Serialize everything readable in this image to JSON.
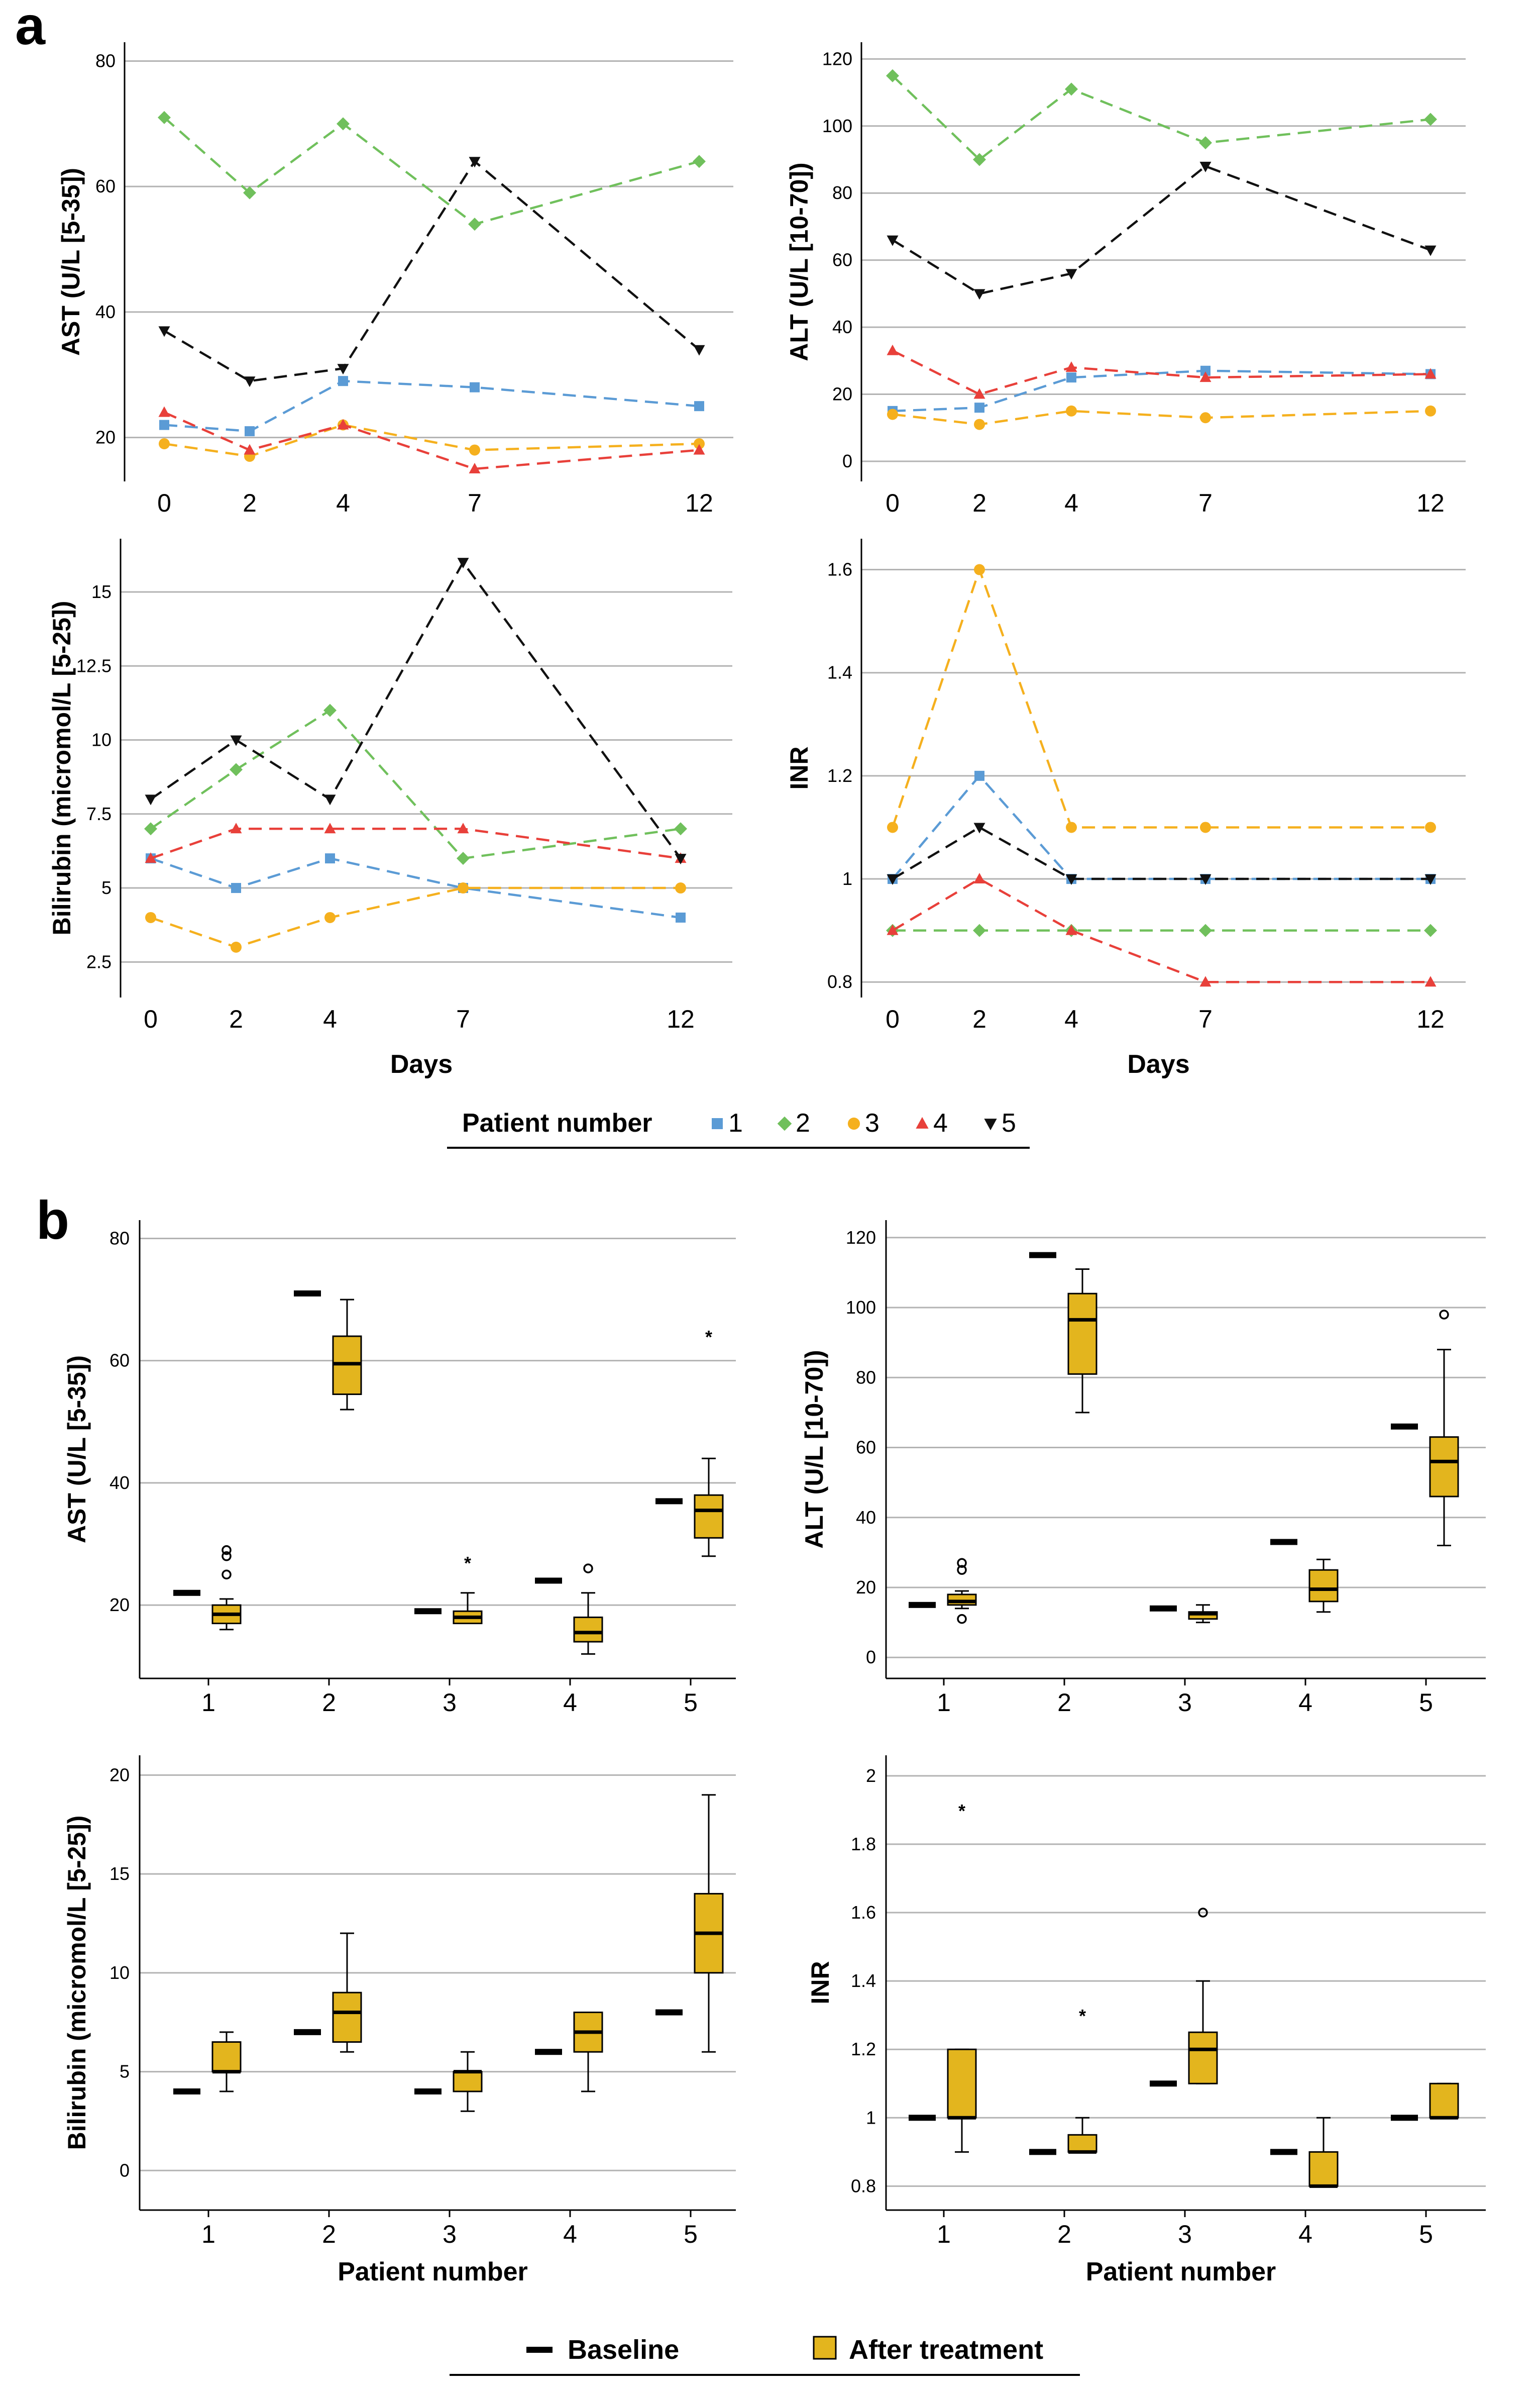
{
  "panel_labels": {
    "a": "a",
    "b": "b"
  },
  "legend_a": {
    "title": "Patient number",
    "entries": [
      {
        "label": "1",
        "color": "#5B9BD5",
        "marker": "square"
      },
      {
        "label": "2",
        "color": "#70C05C",
        "marker": "diamond"
      },
      {
        "label": "3",
        "color": "#F5B01E",
        "marker": "circle"
      },
      {
        "label": "4",
        "color": "#E8403A",
        "marker": "triangle-up"
      },
      {
        "label": "5",
        "color": "#111111",
        "marker": "triangle-down"
      }
    ]
  },
  "legend_b": {
    "baseline_label": "Baseline",
    "after_label": "After treatment",
    "after_color": "#E3B51E"
  },
  "chart_data": [
    {
      "type": "line",
      "panel": "a",
      "position": "top-left",
      "title": "",
      "xlabel": "",
      "ylabel": "AST (U/L [5-35])",
      "x": [
        0,
        2,
        4,
        7,
        12
      ],
      "x_tick_labels": [
        "0",
        "2",
        "4",
        "7",
        "12"
      ],
      "ylim": [
        13,
        83
      ],
      "y_ticks": [
        20,
        40,
        60,
        80
      ],
      "grid": true,
      "series": [
        {
          "name": "1",
          "values": [
            22,
            21,
            29,
            28,
            25
          ]
        },
        {
          "name": "2",
          "values": [
            71,
            59,
            70,
            54,
            64
          ]
        },
        {
          "name": "3",
          "values": [
            19,
            17,
            22,
            18,
            19
          ]
        },
        {
          "name": "4",
          "values": [
            24,
            18,
            22,
            15,
            18
          ]
        },
        {
          "name": "5",
          "values": [
            37,
            29,
            31,
            64,
            34
          ]
        }
      ]
    },
    {
      "type": "line",
      "panel": "a",
      "position": "top-right",
      "title": "",
      "xlabel": "",
      "ylabel": "ALT (U/L [10-70])",
      "x": [
        0,
        2,
        4,
        7,
        12
      ],
      "x_tick_labels": [
        "0",
        "2",
        "4",
        "7",
        "12"
      ],
      "ylim": [
        -6,
        125
      ],
      "y_ticks": [
        0,
        20,
        40,
        60,
        80,
        100,
        120
      ],
      "grid": true,
      "series": [
        {
          "name": "1",
          "values": [
            15,
            16,
            25,
            27,
            26
          ]
        },
        {
          "name": "2",
          "values": [
            115,
            90,
            111,
            95,
            102
          ]
        },
        {
          "name": "3",
          "values": [
            14,
            11,
            15,
            13,
            15
          ]
        },
        {
          "name": "4",
          "values": [
            33,
            20,
            28,
            25,
            26
          ]
        },
        {
          "name": "5",
          "values": [
            66,
            50,
            56,
            88,
            63
          ]
        }
      ]
    },
    {
      "type": "line",
      "panel": "a",
      "position": "bottom-left",
      "title": "",
      "xlabel": "Days",
      "ylabel": "Bilirubin (micromol/L [5-25])",
      "x": [
        0,
        2,
        4,
        7,
        12
      ],
      "x_tick_labels": [
        "0",
        "2",
        "4",
        "7",
        "12"
      ],
      "ylim": [
        1.3,
        16.8
      ],
      "y_ticks": [
        2.5,
        5,
        7.5,
        10,
        12.5,
        15
      ],
      "grid": true,
      "series": [
        {
          "name": "1",
          "values": [
            6,
            5,
            6,
            5,
            4
          ]
        },
        {
          "name": "2",
          "values": [
            7,
            9,
            11,
            6,
            7
          ]
        },
        {
          "name": "3",
          "values": [
            4,
            3,
            4,
            5,
            5
          ]
        },
        {
          "name": "4",
          "values": [
            6,
            7,
            7,
            7,
            6
          ]
        },
        {
          "name": "5",
          "values": [
            8,
            10,
            8,
            16,
            6
          ]
        }
      ]
    },
    {
      "type": "line",
      "panel": "a",
      "position": "bottom-right",
      "title": "",
      "xlabel": "Days",
      "ylabel": "INR",
      "x": [
        0,
        2,
        4,
        7,
        12
      ],
      "x_tick_labels": [
        "0",
        "2",
        "4",
        "7",
        "12"
      ],
      "ylim": [
        0.77,
        1.66
      ],
      "y_ticks": [
        0.8,
        1,
        1.2,
        1.4,
        1.6
      ],
      "grid": true,
      "series": [
        {
          "name": "1",
          "values": [
            1.0,
            1.2,
            1.0,
            1.0,
            1.0
          ]
        },
        {
          "name": "2",
          "values": [
            0.9,
            0.9,
            0.9,
            0.9,
            0.9
          ]
        },
        {
          "name": "3",
          "values": [
            1.1,
            1.6,
            1.1,
            1.1,
            1.1
          ]
        },
        {
          "name": "4",
          "values": [
            0.9,
            1.0,
            0.9,
            0.8,
            0.8
          ]
        },
        {
          "name": "5",
          "values": [
            1.0,
            1.1,
            1.0,
            1.0,
            1.0
          ]
        }
      ]
    },
    {
      "type": "box",
      "panel": "b",
      "position": "top-left",
      "title": "",
      "xlabel": "",
      "ylabel": "AST (U/L [5-35])",
      "categories": [
        "1",
        "2",
        "3",
        "4",
        "5"
      ],
      "ylim": [
        8,
        83
      ],
      "y_ticks": [
        20,
        40,
        60,
        80
      ],
      "grid": true,
      "baseline": [
        22,
        71,
        19,
        24,
        37
      ],
      "boxes": [
        {
          "min": 16,
          "q1": 17,
          "median": 18.5,
          "q3": 20,
          "max": 21,
          "outliers": [
            {
              "v": 25,
              "mark": "o"
            },
            {
              "v": 28,
              "mark": "o"
            },
            {
              "v": 29,
              "mark": "o"
            }
          ]
        },
        {
          "min": 52,
          "q1": 54.5,
          "median": 59.5,
          "q3": 64,
          "max": 70,
          "outliers": []
        },
        {
          "min": 17,
          "q1": 17,
          "median": 18,
          "q3": 19,
          "max": 22,
          "outliers": [
            {
              "v": 27,
              "mark": "*"
            }
          ]
        },
        {
          "min": 12,
          "q1": 14,
          "median": 15.5,
          "q3": 18,
          "max": 22,
          "outliers": [
            {
              "v": 26,
              "mark": "o"
            }
          ]
        },
        {
          "min": 28,
          "q1": 31,
          "median": 35.5,
          "q3": 38,
          "max": 44,
          "outliers": [
            {
              "v": 64,
              "mark": "*"
            }
          ]
        }
      ]
    },
    {
      "type": "box",
      "panel": "b",
      "position": "top-right",
      "title": "",
      "xlabel": "",
      "ylabel": "ALT (U/L [10-70])",
      "categories": [
        "1",
        "2",
        "3",
        "4",
        "5"
      ],
      "ylim": [
        -6,
        125
      ],
      "y_ticks": [
        0,
        20,
        40,
        60,
        80,
        100,
        120
      ],
      "grid": true,
      "baseline": [
        15,
        115,
        14,
        33,
        66
      ],
      "boxes": [
        {
          "min": 14,
          "q1": 15,
          "median": 16,
          "q3": 18,
          "max": 19,
          "outliers": [
            {
              "v": 11,
              "mark": "o"
            },
            {
              "v": 25,
              "mark": "o"
            },
            {
              "v": 27,
              "mark": "o"
            }
          ]
        },
        {
          "min": 70,
          "q1": 81,
          "median": 96.5,
          "q3": 104,
          "max": 111,
          "outliers": []
        },
        {
          "min": 10,
          "q1": 11,
          "median": 12.5,
          "q3": 13,
          "max": 15,
          "outliers": []
        },
        {
          "min": 13,
          "q1": 16,
          "median": 19.5,
          "q3": 25,
          "max": 28,
          "outliers": []
        },
        {
          "min": 32,
          "q1": 46,
          "median": 56,
          "q3": 63,
          "max": 88,
          "outliers": [
            {
              "v": 98,
              "mark": "o"
            }
          ]
        }
      ]
    },
    {
      "type": "box",
      "panel": "b",
      "position": "bottom-left",
      "title": "",
      "xlabel": "Patient number",
      "ylabel": "Bilirubin (micromol/L [5-25])",
      "categories": [
        "1",
        "2",
        "3",
        "4",
        "5"
      ],
      "ylim": [
        -2,
        21
      ],
      "y_ticks": [
        0,
        5,
        10,
        15,
        20
      ],
      "grid": true,
      "baseline": [
        4,
        7,
        4,
        6,
        8
      ],
      "boxes": [
        {
          "min": 4,
          "q1": 5,
          "median": 5,
          "q3": 6.5,
          "max": 7,
          "outliers": []
        },
        {
          "min": 6,
          "q1": 6.5,
          "median": 8,
          "q3": 9,
          "max": 12,
          "outliers": []
        },
        {
          "min": 3,
          "q1": 4,
          "median": 5,
          "q3": 5,
          "max": 6,
          "outliers": []
        },
        {
          "min": 4,
          "q1": 6,
          "median": 7,
          "q3": 8,
          "max": 8,
          "outliers": []
        },
        {
          "min": 6,
          "q1": 10,
          "median": 12,
          "q3": 14,
          "max": 19,
          "outliers": []
        }
      ]
    },
    {
      "type": "box",
      "panel": "b",
      "position": "bottom-right",
      "title": "",
      "xlabel": "Patient number",
      "ylabel": "INR",
      "categories": [
        "1",
        "2",
        "3",
        "4",
        "5"
      ],
      "ylim": [
        0.73,
        2.06
      ],
      "y_ticks": [
        0.8,
        1,
        1.2,
        1.4,
        1.6,
        1.8,
        2
      ],
      "grid": true,
      "baseline": [
        1.0,
        0.9,
        1.1,
        0.9,
        1.0
      ],
      "boxes": [
        {
          "min": 0.9,
          "q1": 1.0,
          "median": 1.0,
          "q3": 1.2,
          "max": 1.2,
          "outliers": [
            {
              "v": 1.9,
              "mark": "*"
            }
          ]
        },
        {
          "min": 0.9,
          "q1": 0.9,
          "median": 0.9,
          "q3": 0.95,
          "max": 1.0,
          "outliers": [
            {
              "v": 1.3,
              "mark": "*"
            }
          ]
        },
        {
          "min": 1.1,
          "q1": 1.1,
          "median": 1.2,
          "q3": 1.25,
          "max": 1.4,
          "outliers": [
            {
              "v": 1.6,
              "mark": "o"
            }
          ]
        },
        {
          "min": 0.8,
          "q1": 0.8,
          "median": 0.8,
          "q3": 0.9,
          "max": 1.0,
          "outliers": []
        },
        {
          "min": 1.0,
          "q1": 1.0,
          "median": 1.0,
          "q3": 1.1,
          "max": 1.1,
          "outliers": []
        }
      ]
    }
  ]
}
